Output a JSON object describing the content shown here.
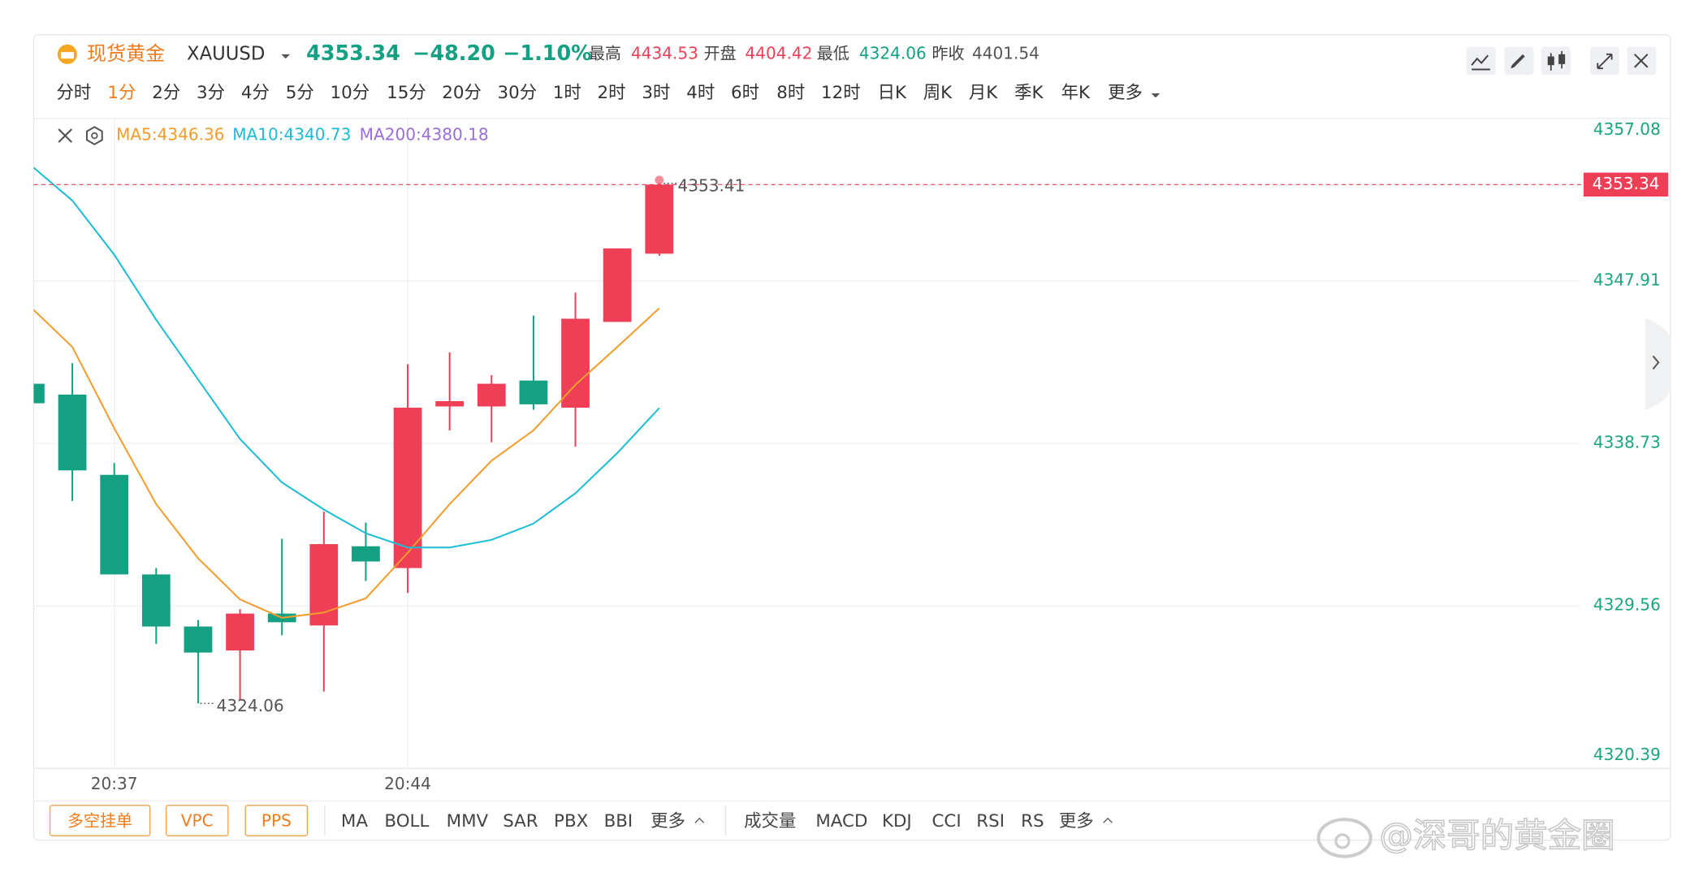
{
  "header": {
    "name": "现货黄金",
    "symbol": "XAUUSD",
    "price": "4353.34",
    "change": "−48.20",
    "change_pct": "−1.10%",
    "stats": [
      {
        "label": "最高",
        "value": "4434.53"
      },
      {
        "label": "开盘",
        "value": "4404.42"
      },
      {
        "label": "最低",
        "value": "4324.06"
      },
      {
        "label": "昨收",
        "value": "4401.54"
      }
    ]
  },
  "periods": [
    "分时",
    "1分",
    "2分",
    "3分",
    "4分",
    "5分",
    "10分",
    "15分",
    "20分",
    "30分",
    "1时",
    "2时",
    "3时",
    "4时",
    "6时",
    "8时",
    "12时",
    "日K",
    "周K",
    "月K",
    "季K",
    "年K",
    "更多"
  ],
  "bottom_toolbar": {
    "buttons": [
      "多空挂单",
      "VPC",
      "PPS"
    ],
    "main_indicators": [
      "MA",
      "BOLL",
      "MMV",
      "SAR",
      "PBX",
      "BBI",
      "更多"
    ],
    "sub_indicators": [
      "成交量",
      "MACD",
      "KDJ",
      "CCI",
      "RSI",
      "RS",
      "更多"
    ]
  },
  "watermark": "@深哥的黄金圈",
  "chart_data": {
    "type": "candlestick",
    "categories": [
      null,
      null,
      "20:37",
      null,
      null,
      null,
      null,
      null,
      null,
      "20:44",
      null,
      null,
      null,
      null,
      null,
      null
    ],
    "open": [
      4342.1,
      4341.49,
      4336.96,
      4331.34,
      4328.4,
      4327.05,
      4329.13,
      4328.46,
      4332.93,
      4331.7,
      4340.82,
      4340.82,
      4342.28,
      4340.75,
      4345.59,
      4349.44
    ],
    "high": [
      4342.1,
      4343.26,
      4337.63,
      4331.7,
      4328.77,
      4329.38,
      4333.35,
      4334.88,
      4334.27,
      4343.2,
      4343.87,
      4342.59,
      4345.95,
      4347.24,
      4349.74,
      4353.41
    ],
    "low": [
      4341.0,
      4335.49,
      4331.34,
      4327.42,
      4324.06,
      4324.3,
      4327.91,
      4324.73,
      4330.97,
      4330.3,
      4339.47,
      4338.8,
      4340.63,
      4338.55,
      4345.59,
      4349.32
    ],
    "close": [
      4341.0,
      4337.21,
      4331.34,
      4328.4,
      4326.93,
      4329.13,
      4328.64,
      4333.05,
      4332.07,
      4340.75,
      4341.12,
      4342.1,
      4340.94,
      4345.77,
      4349.74,
      4353.34
    ],
    "up_color": "#ee3f56",
    "down_color": "#14a083",
    "series": [
      {
        "name": "MA5:4346.36",
        "color": "#f39c2c",
        "values": [
          4346.44,
          4344.18,
          4339.59,
          4335.31,
          4332.25,
          4329.93,
          4328.89,
          4329.19,
          4329.99,
          4332.56,
          4335.31,
          4337.76,
          4339.47,
          4342.04,
          4344.18,
          4346.36
        ]
      },
      {
        "name": "MA10:4340.73",
        "color": "#1bbcd6",
        "values": [
          4354.45,
          4352.44,
          4349.38,
          4345.71,
          4342.34,
          4338.98,
          4336.53,
          4335.0,
          4333.66,
          4332.86,
          4332.86,
          4333.29,
          4334.21,
          4335.92,
          4338.19,
          4340.73
        ]
      },
      {
        "name": "MA200:4380.18",
        "color": "#9a6ddb",
        "values": [
          null,
          null,
          null,
          null,
          null,
          null,
          null,
          null,
          null,
          null,
          null,
          null,
          null,
          null,
          null,
          null
        ]
      }
    ],
    "ylim": [
      4320.39,
      4357.08
    ],
    "yticks": [
      4320.39,
      4329.56,
      4338.73,
      4347.91,
      4357.08
    ],
    "grid": true,
    "last_price": 4353.34,
    "max_label": 4353.41,
    "min_label": 4324.06
  }
}
